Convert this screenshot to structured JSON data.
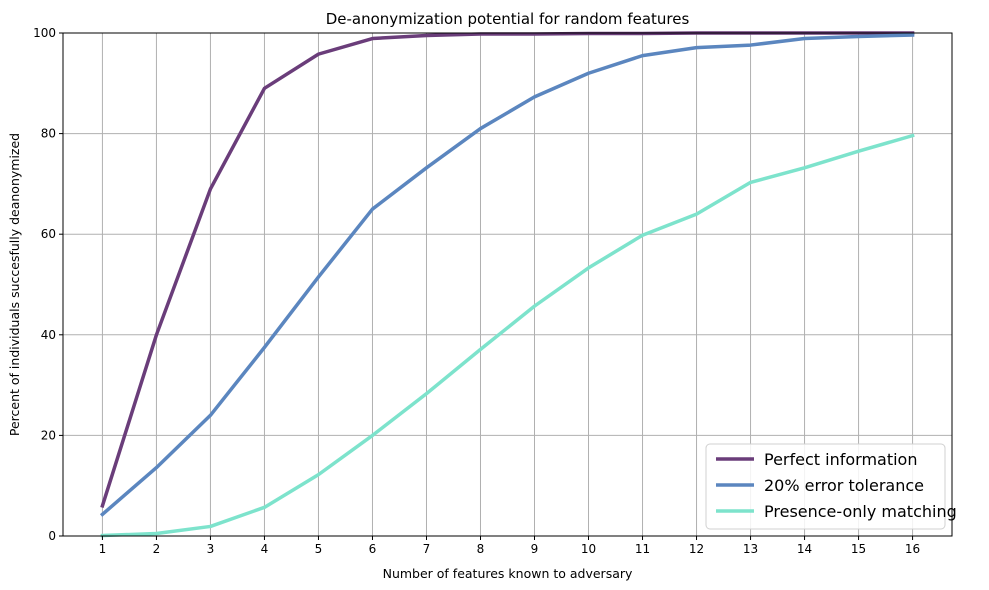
{
  "chart_data": {
    "type": "line",
    "title": "De-anonymization potential for random features",
    "xlabel": "Number of features known to adversary",
    "ylabel": "Percent of individuals succesfully deanonymized",
    "x": [
      1,
      2,
      3,
      4,
      5,
      6,
      7,
      8,
      9,
      10,
      11,
      12,
      13,
      14,
      15,
      16
    ],
    "xlim": [
      0.27,
      16.73
    ],
    "ylim": [
      0,
      100
    ],
    "yticks": [
      0,
      20,
      40,
      60,
      80,
      100
    ],
    "grid": true,
    "legend_position": "bottom-right",
    "series": [
      {
        "name": "Perfect information",
        "color": "#6a3d7a",
        "values": [
          6,
          40,
          69,
          89,
          95.8,
          98.9,
          99.5,
          99.8,
          99.8,
          99.9,
          99.9,
          100,
          100,
          100,
          100,
          100
        ]
      },
      {
        "name": "20% error tolerance",
        "color": "#5b86bf",
        "values": [
          4.3,
          13.6,
          24,
          37.5,
          51.5,
          65,
          73.2,
          81,
          87.3,
          92,
          95.5,
          97.1,
          97.6,
          98.9,
          99.3,
          99.6
        ]
      },
      {
        "name": "Presence-only matching",
        "color": "#7de3cc",
        "values": [
          0.1,
          0.5,
          1.9,
          5.7,
          12.2,
          20,
          28.3,
          37.1,
          45.7,
          53.3,
          59.8,
          64,
          70.3,
          73.2,
          76.5,
          79.6
        ]
      }
    ]
  }
}
